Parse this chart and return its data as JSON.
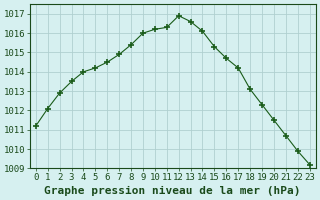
{
  "x": [
    0,
    1,
    2,
    3,
    4,
    5,
    6,
    7,
    8,
    9,
    10,
    11,
    12,
    13,
    14,
    15,
    16,
    17,
    18,
    19,
    20,
    21,
    22,
    23
  ],
  "y": [
    1011.2,
    1012.1,
    1012.9,
    1013.5,
    1014.0,
    1014.2,
    1014.5,
    1014.9,
    1015.4,
    1016.0,
    1016.2,
    1016.3,
    1016.9,
    1016.6,
    1016.1,
    1015.3,
    1014.7,
    1014.2,
    1013.1,
    1012.3,
    1011.5,
    1010.7,
    1009.9,
    1009.2
  ],
  "line_color": "#1a5c1a",
  "marker": "+",
  "marker_size": 5,
  "bg_color": "#d6f0f0",
  "grid_color": "#b0d0d0",
  "title": "Graphe pression niveau de la mer (hPa)",
  "title_fontsize": 8,
  "ylim": [
    1009,
    1017.5
  ],
  "xlim": [
    -0.5,
    23.5
  ],
  "yticks": [
    1009,
    1010,
    1011,
    1012,
    1013,
    1014,
    1015,
    1016,
    1017
  ],
  "xticks": [
    0,
    1,
    2,
    3,
    4,
    5,
    6,
    7,
    8,
    9,
    10,
    11,
    12,
    13,
    14,
    15,
    16,
    17,
    18,
    19,
    20,
    21,
    22,
    23
  ],
  "tick_fontsize": 6.5,
  "label_color": "#1a4a1a"
}
